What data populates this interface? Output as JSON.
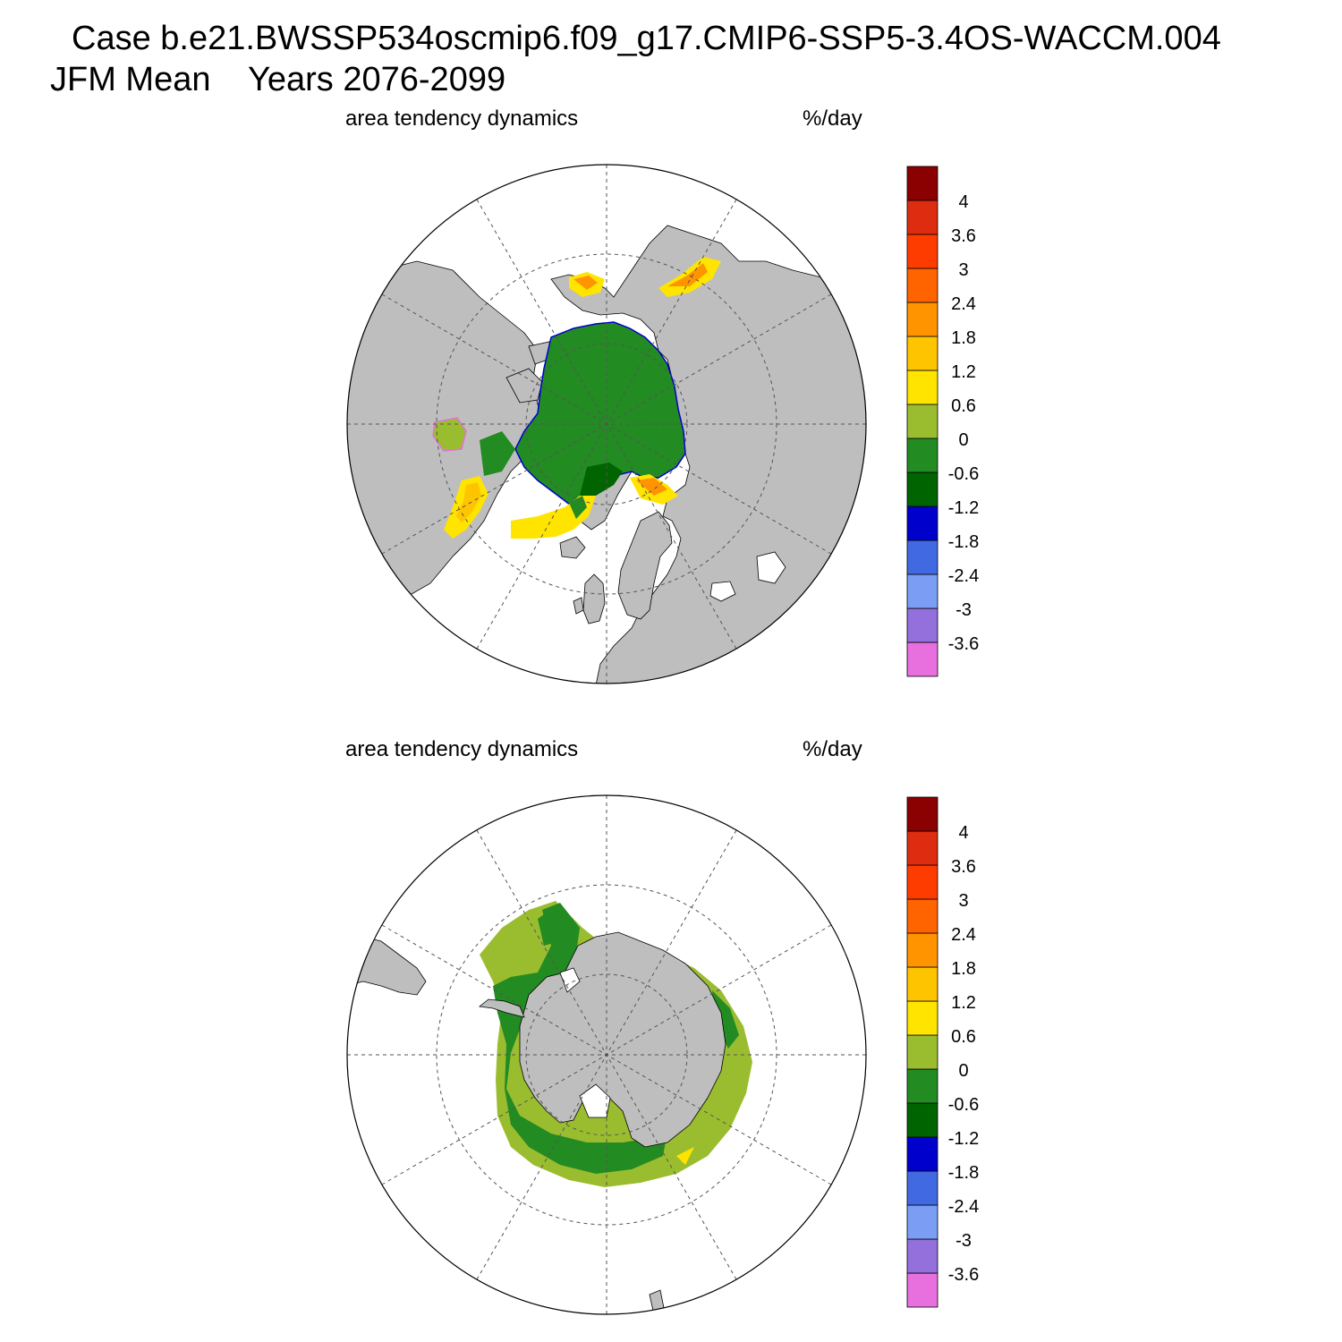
{
  "title": {
    "case": "Case b.e21.BWSSP534oscmip6.f09_g17.CMIP6-SSP5-3.4OS-WACCM.004",
    "period": "JFM Mean",
    "years": "Years 2076-2099"
  },
  "panels": [
    {
      "id": "north",
      "variable": "area tendency dynamics",
      "units": "%/day"
    },
    {
      "id": "south",
      "variable": "area tendency dynamics",
      "units": "%/day"
    }
  ],
  "colorbar": {
    "colors": [
      "#e770de",
      "#9370dc",
      "#7b9ef4",
      "#4169e1",
      "#0000cd",
      "#006400",
      "#228b22",
      "#9abd2f",
      "#ffe400",
      "#ffc400",
      "#ff9400",
      "#ff6400",
      "#ff3c00",
      "#dd2c10",
      "#8b0000"
    ],
    "levels": [
      "-3.6",
      "-3",
      "-2.4",
      "-1.8",
      "-1.2",
      "-0.6",
      "0",
      "0.6",
      "1.2",
      "1.8",
      "2.4",
      "3",
      "3.6",
      "4"
    ]
  },
  "colors": {
    "land": "#bebebe",
    "ocean": "#ffffff",
    "grid": "#555555"
  }
}
